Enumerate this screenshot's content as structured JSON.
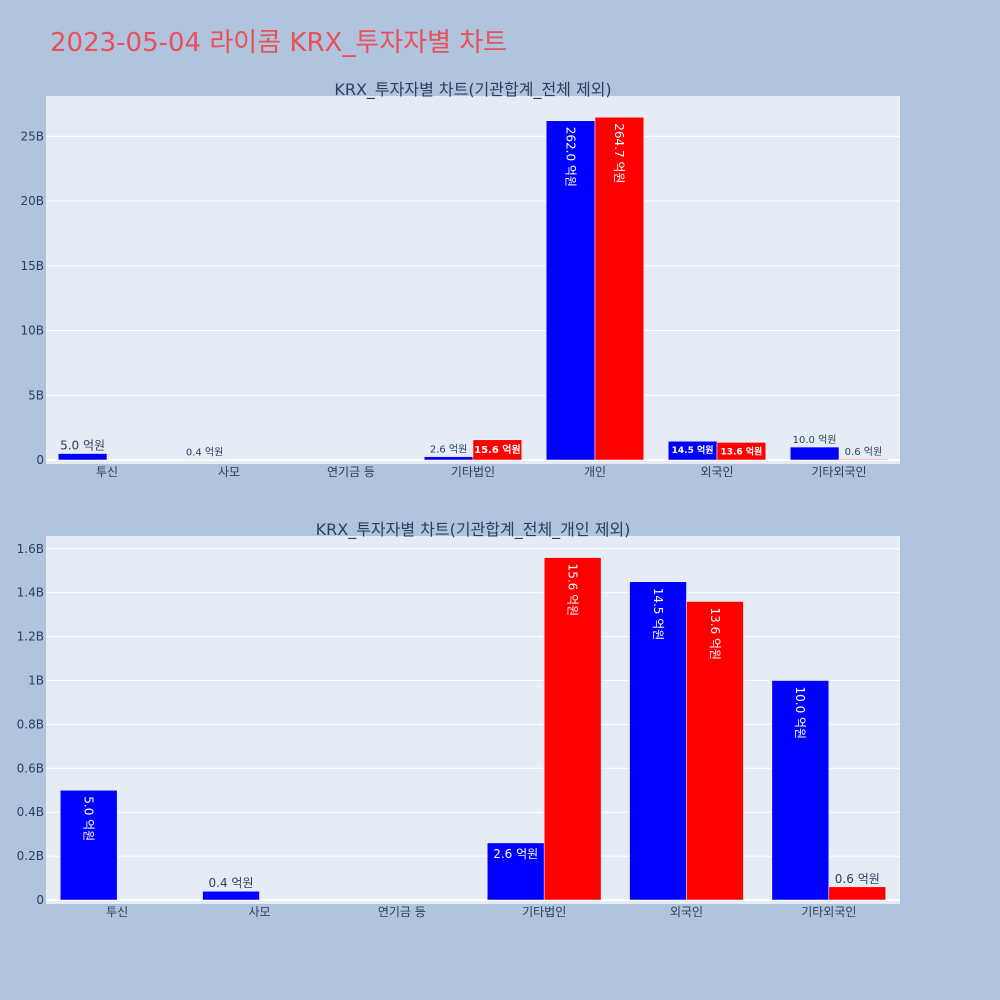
{
  "page": {
    "title": "2023-05-04 라이콤 KRX_투자자별 차트"
  },
  "colors": {
    "buy": "#0000ff",
    "sell": "#ff0000",
    "plot_bg": "#e5ecf6",
    "page_bg": "#b0c4de",
    "title": "#e8505b"
  },
  "chart_data": [
    {
      "type": "bar",
      "title": "KRX_투자자별 차트(기관합계_전체 제외)",
      "categories": [
        "투신",
        "사모",
        "연기금 등",
        "기타법인",
        "개인",
        "외국인",
        "기타외국인"
      ],
      "series": [
        {
          "values": [
            500000000,
            40000000,
            0,
            260000000,
            26200000000,
            1450000000,
            1000000000
          ],
          "labels": [
            "5.0 억원",
            "0.4 억원",
            "",
            "2.6 억원",
            "262.0 억원",
            "14.5 억원",
            "10.0 억원"
          ]
        },
        {
          "values": [
            0,
            0,
            0,
            1560000000,
            26470000000,
            1360000000,
            60000000
          ],
          "labels": [
            "",
            "",
            "",
            "15.6 억원",
            "264.7 억원",
            "13.6 억원",
            "0.6 억원"
          ]
        }
      ],
      "yticks": [
        "0",
        "5B",
        "10B",
        "15B",
        "20B",
        "25B"
      ],
      "ytick_values": [
        0,
        5000000000,
        10000000000,
        15000000000,
        20000000000,
        25000000000
      ],
      "ylim": [
        0,
        27800000000
      ],
      "grid": true
    },
    {
      "type": "bar",
      "title": "KRX_투자자별 차트(기관합계_전체_개인 제외)",
      "categories": [
        "투신",
        "사모",
        "연기금 등",
        "기타법인",
        "외국인",
        "기타외국인"
      ],
      "series": [
        {
          "values": [
            500000000,
            40000000,
            0,
            260000000,
            1450000000,
            1000000000
          ],
          "labels": [
            "5.0 억원",
            "0.4 억원",
            "",
            "2.6 억원",
            "14.5 억원",
            "10.0 억원"
          ]
        },
        {
          "values": [
            0,
            0,
            0,
            1560000000,
            1360000000,
            60000000
          ],
          "labels": [
            "",
            "",
            "",
            "15.6 억원",
            "13.6 억원",
            "0.6 억원"
          ]
        }
      ],
      "yticks": [
        "0",
        "0.2B",
        "0.4B",
        "0.6B",
        "0.8B",
        "1B",
        "1.2B",
        "1.4B",
        "1.6B"
      ],
      "ytick_values": [
        0,
        200000000,
        400000000,
        600000000,
        800000000,
        1000000000,
        1200000000,
        1400000000,
        1600000000
      ],
      "ylim": [
        0,
        1640000000
      ],
      "grid": true
    }
  ]
}
